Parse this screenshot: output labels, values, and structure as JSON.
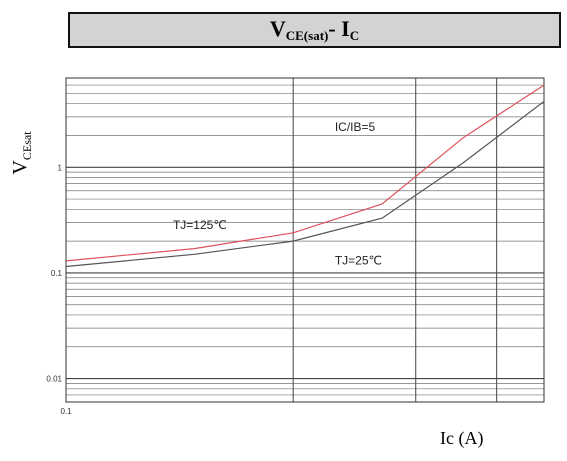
{
  "header": {
    "title_main": "V",
    "title_sub": "CE(sat)",
    "title_tail": "- I",
    "title_tail_sub": "C"
  },
  "chart_data": {
    "type": "line",
    "ylabel_main": "V",
    "ylabel_sub": "CEsat",
    "xlabel": "Ic (A)",
    "x_scale": "log",
    "y_scale": "log",
    "xlim": [
      0.1,
      6
    ],
    "ylim": [
      0.006,
      7
    ],
    "y_ticks": [
      {
        "value": 1,
        "label": "1"
      },
      {
        "value": 0.1,
        "label": "0.1"
      },
      {
        "value": 0.01,
        "label": "0.01"
      }
    ],
    "x_ticks": [
      {
        "value": 0.1,
        "label": "0.1"
      }
    ],
    "x_gridlines": [
      0.1,
      0.7,
      2.0,
      4.0,
      6.0
    ],
    "grid": true,
    "series": [
      {
        "name": "TJ=125℃",
        "color": "#e0505a",
        "x": [
          0.1,
          0.3,
          0.7,
          1.5,
          3.0,
          6.0
        ],
        "y": [
          0.13,
          0.17,
          0.24,
          0.45,
          1.9,
          6.0
        ]
      },
      {
        "name": "TJ=25℃",
        "color": "#555555",
        "x": [
          0.1,
          0.3,
          0.7,
          1.5,
          3.0,
          6.0
        ],
        "y": [
          0.115,
          0.15,
          0.2,
          0.33,
          1.1,
          4.2
        ]
      }
    ],
    "annotations": [
      {
        "text": "IC/IB=5",
        "x": 1.0,
        "y": 2.2
      },
      {
        "text": "TJ=125℃",
        "x": 0.25,
        "y": 0.26
      },
      {
        "text": "TJ=25℃",
        "x": 1.0,
        "y": 0.12
      }
    ]
  }
}
